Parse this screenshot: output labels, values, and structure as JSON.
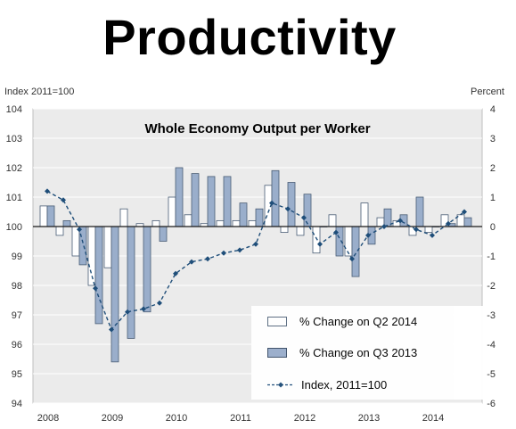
{
  "page_title": "Productivity",
  "left_axis_title": "Index 2011=100",
  "right_axis_title": "Percent",
  "colors": {
    "q2_fill": "#ffffff",
    "q3_fill": "#9aaecb",
    "bar_stroke": "#4a5d75",
    "index_line": "#1f4e79",
    "plot_bg": "#ebebeb",
    "grid": "#ffffff"
  },
  "legend": {
    "q2": "% Change on Q2 2014",
    "q3": "% Change on Q3 2013",
    "index": "Index, 2011=100"
  },
  "chart_data": {
    "type": "bar",
    "title": "Whole Economy Output per Worker",
    "x_tick_labels": [
      "2008",
      "2009",
      "2010",
      "2011",
      "2012",
      "2013",
      "2014"
    ],
    "left_ylim": [
      94,
      104
    ],
    "left_ticks": [
      94,
      95,
      96,
      97,
      98,
      99,
      100,
      101,
      102,
      103,
      104
    ],
    "right_ylim": [
      -6,
      4
    ],
    "right_ticks": [
      -6,
      -5,
      -4,
      -3,
      -2,
      -1,
      0,
      1,
      2,
      3,
      4
    ],
    "legend_placement": "bottom-right",
    "grid": true,
    "quarters": [
      "2008 Q1",
      "2008 Q2",
      "2008 Q3",
      "2008 Q4",
      "2009 Q1",
      "2009 Q2",
      "2009 Q3",
      "2009 Q4",
      "2010 Q1",
      "2010 Q2",
      "2010 Q3",
      "2010 Q4",
      "2011 Q1",
      "2011 Q2",
      "2011 Q3",
      "2011 Q4",
      "2012 Q1",
      "2012 Q2",
      "2012 Q3",
      "2012 Q4",
      "2013 Q1",
      "2013 Q2",
      "2013 Q3",
      "2013 Q4",
      "2014 Q1",
      "2014 Q2",
      "2014 Q3"
    ],
    "series": [
      {
        "name": "% Change on Q2 2014",
        "axis": "right",
        "values": [
          0.7,
          -0.3,
          -1.0,
          -2.0,
          -1.4,
          0.6,
          0.1,
          0.2,
          1.0,
          0.4,
          0.1,
          0.2,
          0.2,
          0.2,
          1.4,
          -0.2,
          -0.3,
          -0.9,
          0.4,
          -1.0,
          0.8,
          0.3,
          0.2,
          -0.3,
          -0.2,
          0.4,
          0.4
        ]
      },
      {
        "name": "% Change on Q3 2013",
        "axis": "right",
        "values": [
          0.7,
          0.2,
          -1.3,
          -3.3,
          -4.6,
          -3.8,
          -2.9,
          -0.5,
          2.0,
          1.8,
          1.7,
          1.7,
          0.8,
          0.6,
          1.9,
          1.5,
          1.1,
          0.0,
          -1.0,
          -1.7,
          -0.6,
          0.6,
          0.4,
          1.0,
          0.0,
          0.1,
          0.3
        ]
      },
      {
        "name": "Index, 2011=100",
        "axis": "left",
        "values": [
          101.2,
          100.9,
          99.9,
          97.9,
          96.5,
          97.1,
          97.2,
          97.4,
          98.4,
          98.8,
          98.9,
          99.1,
          99.2,
          99.4,
          100.8,
          100.6,
          100.3,
          99.4,
          99.8,
          98.9,
          99.7,
          100.0,
          100.2,
          99.9,
          99.7,
          100.1,
          100.5
        ]
      }
    ]
  }
}
